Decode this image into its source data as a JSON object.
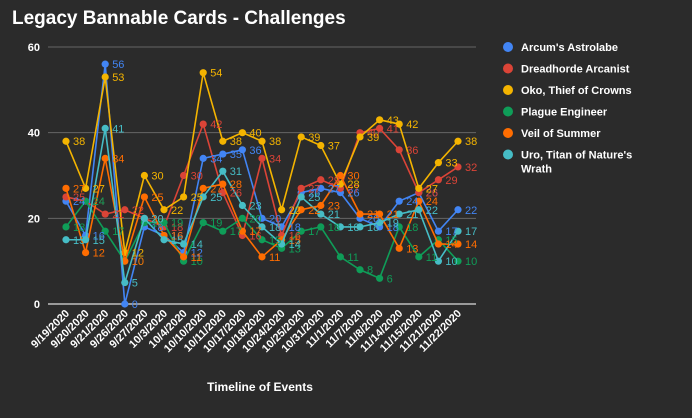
{
  "chart_data": {
    "type": "line",
    "title": "Legacy Bannable Cards - Challenges",
    "xlabel": "Timeline of Events",
    "ylabel": "",
    "ylim": [
      0,
      60
    ],
    "yticks": [
      0,
      20,
      40,
      60
    ],
    "grid": true,
    "legend": "right",
    "categories": [
      "9/19/2020",
      "9/20/2020",
      "9/21/2020",
      "9/26/2020",
      "9/27/2020",
      "10/3/2020",
      "10/4/2020",
      "10/10/2020",
      "10/11/2020",
      "10/17/2020",
      "10/18/2020",
      "10/24/2020",
      "10/25/2020",
      "10/31/2020",
      "11/1/2020",
      "11/7/2020",
      "11/8/2020",
      "11/14/2020",
      "11/15/2020",
      "11/21/2020",
      "11/22/2020"
    ],
    "x_tick_labels": [
      "9/19/2020",
      "9/20/2020",
      "9/21/2020",
      "9/26/2020",
      "9/27/2020",
      "10/3/2020",
      "10/4/2020",
      "10/10/2020",
      "10/11/2020",
      "10/17/2020",
      "10/18/2020",
      "10/24/2020",
      "10/25/2020",
      "10/31/2020",
      "11/1/2020",
      "11/7/2020",
      "11/8/2020",
      "11/14/2020",
      "11/15/2020",
      "11/21/2020",
      "11/22/2020"
    ],
    "series": [
      {
        "name": "Arcum's Astrolabe",
        "color": "#4285f4",
        "values": [
          24,
          16,
          56,
          0,
          18,
          16,
          12,
          34,
          35,
          36,
          20,
          18,
          26,
          27,
          26,
          20,
          18,
          24,
          26,
          17,
          22
        ]
      },
      {
        "name": "Dreadhorde Arcanist",
        "color": "#db4437",
        "values": [
          25,
          24,
          21,
          22,
          20,
          18,
          30,
          42,
          26,
          16,
          34,
          16,
          27,
          29,
          27,
          40,
          41,
          36,
          26,
          29,
          32
        ]
      },
      {
        "name": "Oko, Thief of Crowns",
        "color": "#f4b400",
        "values": [
          38,
          27,
          53,
          12,
          30,
          22,
          25,
          54,
          38,
          40,
          38,
          22,
          39,
          37,
          28,
          39,
          43,
          42,
          27,
          33,
          38
        ]
      },
      {
        "name": "Plague Engineer",
        "color": "#0f9d58",
        "values": [
          18,
          24,
          17,
          10,
          19,
          19,
          10,
          19,
          17,
          20,
          15,
          13,
          17,
          18,
          11,
          8,
          6,
          18,
          11,
          15,
          10
        ]
      },
      {
        "name": "Veil of Summer",
        "color": "#ff6d01",
        "values": [
          27,
          12,
          34,
          10,
          25,
          16,
          11,
          27,
          28,
          17,
          11,
          15,
          22,
          23,
          30,
          21,
          21,
          13,
          24,
          14,
          14
        ]
      },
      {
        "name": "Uro, Titan of Nature's Wrath",
        "color": "#46bdc6",
        "values": [
          15,
          15,
          41,
          5,
          20,
          15,
          14,
          25,
          31,
          23,
          18,
          14,
          25,
          21,
          18,
          18,
          19,
          21,
          22,
          10,
          17
        ]
      }
    ]
  }
}
